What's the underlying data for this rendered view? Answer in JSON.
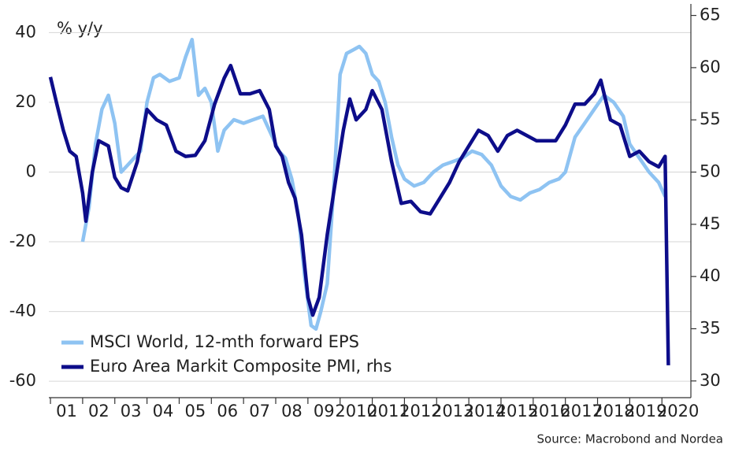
{
  "chart_data": {
    "type": "line",
    "axis_title": "% y/y",
    "source": "Source: Macrobond and Nordea",
    "xlim": [
      2000.95,
      2020.9
    ],
    "xticks": [
      {
        "value": 2001,
        "label": "01"
      },
      {
        "value": 2002,
        "label": "02"
      },
      {
        "value": 2003,
        "label": "03"
      },
      {
        "value": 2004,
        "label": "04"
      },
      {
        "value": 2005,
        "label": "05"
      },
      {
        "value": 2006,
        "label": "06"
      },
      {
        "value": 2007,
        "label": "07"
      },
      {
        "value": 2008,
        "label": "08"
      },
      {
        "value": 2009,
        "label": "09"
      },
      2010,
      2011,
      2012,
      2013,
      2014,
      2015,
      2016,
      2017,
      2018,
      2019,
      2020
    ],
    "ylim": [
      -64.7,
      48.2
    ],
    "yticks": [
      -60,
      -40,
      -20,
      0,
      20,
      40
    ],
    "y2lim": [
      28.4,
      66.1
    ],
    "y2ticks": [
      30,
      35,
      40,
      45,
      50,
      55,
      60,
      65
    ],
    "grid": true,
    "legend": "lower left",
    "series": [
      {
        "name": "MSCI World, 12-mth forward EPS",
        "color": "#8ec3f2",
        "x": [
          2002.0,
          2002.2,
          2002.4,
          2002.6,
          2002.8,
          2003.0,
          2003.2,
          2003.4,
          2003.6,
          2003.8,
          2004.0,
          2004.2,
          2004.4,
          2004.7,
          2005.0,
          2005.2,
          2005.4,
          2005.6,
          2005.8,
          2006.0,
          2006.2,
          2006.4,
          2006.7,
          2007.0,
          2007.3,
          2007.6,
          2007.9,
          2008.1,
          2008.3,
          2008.5,
          2008.7,
          2008.9,
          2009.1,
          2009.25,
          2009.4,
          2009.6,
          2009.8,
          2010.0,
          2010.2,
          2010.4,
          2010.6,
          2010.8,
          2011.0,
          2011.2,
          2011.4,
          2011.6,
          2011.8,
          2012.0,
          2012.3,
          2012.6,
          2012.9,
          2013.2,
          2013.5,
          2013.8,
          2014.1,
          2014.4,
          2014.7,
          2015.0,
          2015.3,
          2015.6,
          2015.9,
          2016.2,
          2016.5,
          2016.8,
          2017.0,
          2017.3,
          2017.6,
          2017.9,
          2018.2,
          2018.5,
          2018.8,
          2019.0,
          2019.3,
          2019.6,
          2019.9,
          2020.1
        ],
        "values": [
          -20,
          -10,
          8,
          18,
          22,
          14,
          0,
          2,
          4,
          6,
          20,
          27,
          28,
          26,
          27,
          33,
          38,
          22,
          24,
          20,
          6,
          12,
          15,
          14,
          15,
          16,
          10,
          6,
          4,
          -2,
          -12,
          -30,
          -44,
          -45,
          -40,
          -32,
          -5,
          28,
          34,
          35,
          36,
          34,
          28,
          26,
          20,
          10,
          2,
          -2,
          -4,
          -3,
          0,
          2,
          3,
          4,
          6,
          5,
          2,
          -4,
          -7,
          -8,
          -6,
          -5,
          -3,
          -2,
          0,
          10,
          14,
          18,
          22,
          20,
          16,
          8,
          4,
          0,
          -3,
          -7
        ]
      },
      {
        "name": "Euro Area Markit Composite PMI, rhs",
        "color": "#0d0d8a",
        "axis": "y2",
        "x": [
          2001.0,
          2001.2,
          2001.4,
          2001.6,
          2001.8,
          2002.0,
          2002.1,
          2002.3,
          2002.5,
          2002.8,
          2003.0,
          2003.2,
          2003.4,
          2003.7,
          2004.0,
          2004.3,
          2004.6,
          2004.9,
          2005.2,
          2005.5,
          2005.8,
          2006.1,
          2006.4,
          2006.6,
          2006.9,
          2007.2,
          2007.5,
          2007.8,
          2008.0,
          2008.2,
          2008.4,
          2008.6,
          2008.8,
          2009.0,
          2009.15,
          2009.35,
          2009.6,
          2009.9,
          2010.1,
          2010.3,
          2010.5,
          2010.8,
          2011.0,
          2011.3,
          2011.6,
          2011.9,
          2012.2,
          2012.5,
          2012.8,
          2013.1,
          2013.4,
          2013.7,
          2014.0,
          2014.3,
          2014.6,
          2014.9,
          2015.2,
          2015.5,
          2015.8,
          2016.1,
          2016.4,
          2016.7,
          2017.0,
          2017.3,
          2017.6,
          2017.9,
          2018.1,
          2018.4,
          2018.7,
          2019.0,
          2019.3,
          2019.6,
          2019.9,
          2020.1,
          2020.2
        ],
        "values": [
          59.1,
          56.5,
          54,
          52,
          51.5,
          48,
          45.3,
          50,
          53,
          52.5,
          49.5,
          48.5,
          48.2,
          51,
          56,
          55,
          54.5,
          52,
          51.5,
          51.6,
          53,
          56.5,
          59,
          60.2,
          57.5,
          57.5,
          57.8,
          56,
          52.5,
          51.5,
          49,
          47.5,
          44,
          38,
          36.3,
          38,
          44,
          50,
          54,
          57,
          55,
          56,
          57.8,
          56,
          51,
          47,
          47.2,
          46.2,
          46,
          47.5,
          49,
          51,
          52.5,
          54,
          53.5,
          52,
          53.5,
          54,
          53.5,
          53,
          53,
          53,
          54.5,
          56.5,
          56.5,
          57.5,
          58.8,
          55,
          54.5,
          51.5,
          52,
          51,
          50.5,
          51.5,
          31.5
        ]
      }
    ]
  }
}
